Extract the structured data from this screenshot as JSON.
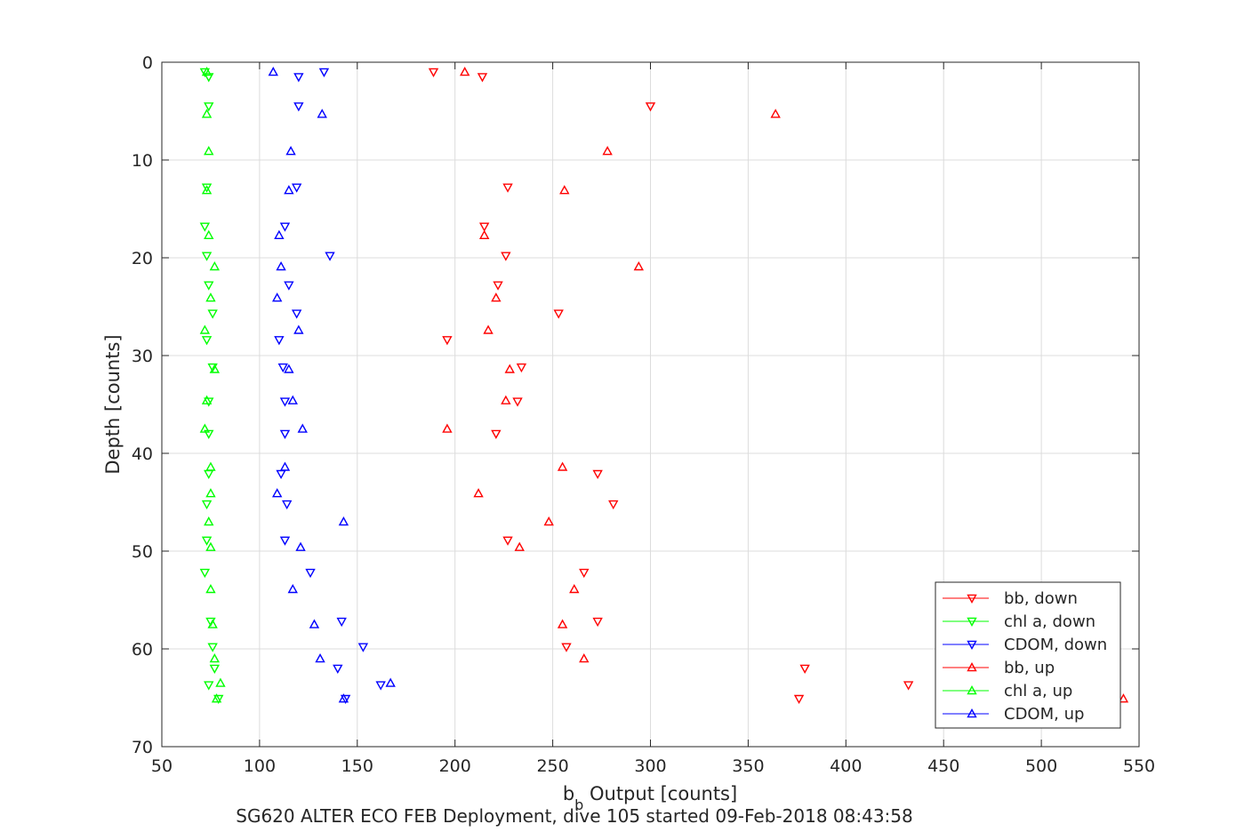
{
  "chart_data": {
    "type": "scatter",
    "xlabel_main": "b",
    "xlabel_sub": "b",
    "xlabel_rest": " Output [counts]",
    "ylabel": "Depth [counts]",
    "caption": "SG620 ALTER ECO FEB Deployment, dive 105 started 09-Feb-2018 08:43:58",
    "xlim": [
      50,
      550
    ],
    "ylim": [
      0,
      70
    ],
    "y_reversed": true,
    "grid": true,
    "legend_position": "bottom-right",
    "x_ticks": [
      "50",
      "100",
      "150",
      "200",
      "250",
      "300",
      "350",
      "400",
      "450",
      "500",
      "550"
    ],
    "y_ticks": [
      "0",
      "10",
      "20",
      "30",
      "40",
      "50",
      "60",
      "70"
    ],
    "series": [
      {
        "name": "bb, down",
        "color": "#ff0000",
        "marker": "triangle-down",
        "points": [
          [
            189,
            1.0
          ],
          [
            214,
            1.5
          ],
          [
            300,
            4.5
          ],
          [
            227,
            12.8
          ],
          [
            215,
            16.8
          ],
          [
            226,
            19.8
          ],
          [
            222,
            22.8
          ],
          [
            253,
            25.7
          ],
          [
            196,
            28.4
          ],
          [
            234,
            31.2
          ],
          [
            232,
            34.7
          ],
          [
            221,
            38.0
          ],
          [
            273,
            42.1
          ],
          [
            281,
            45.2
          ],
          [
            227,
            48.9
          ],
          [
            266,
            52.2
          ],
          [
            273,
            57.2
          ],
          [
            257,
            59.8
          ],
          [
            379,
            62.0
          ],
          [
            432,
            63.7
          ],
          [
            376,
            65.1
          ]
        ]
      },
      {
        "name": "chl a, down",
        "color": "#00ff00",
        "marker": "triangle-down",
        "points": [
          [
            72,
            1.0
          ],
          [
            74,
            1.5
          ],
          [
            74,
            4.5
          ],
          [
            73,
            12.8
          ],
          [
            72,
            16.8
          ],
          [
            73,
            19.8
          ],
          [
            74,
            22.8
          ],
          [
            76,
            25.7
          ],
          [
            73,
            28.4
          ],
          [
            76,
            31.2
          ],
          [
            74,
            34.7
          ],
          [
            74,
            38.0
          ],
          [
            74,
            42.1
          ],
          [
            73,
            45.2
          ],
          [
            73,
            48.9
          ],
          [
            72,
            52.2
          ],
          [
            75,
            57.2
          ],
          [
            76,
            59.8
          ],
          [
            77,
            62.0
          ],
          [
            74,
            63.7
          ],
          [
            79,
            65.1
          ]
        ]
      },
      {
        "name": "CDOM, down",
        "color": "#0000ff",
        "marker": "triangle-down",
        "points": [
          [
            133,
            1.0
          ],
          [
            120,
            1.5
          ],
          [
            120,
            4.5
          ],
          [
            119,
            12.8
          ],
          [
            113,
            16.8
          ],
          [
            136,
            19.8
          ],
          [
            115,
            22.8
          ],
          [
            119,
            25.7
          ],
          [
            110,
            28.4
          ],
          [
            112,
            31.2
          ],
          [
            113,
            34.7
          ],
          [
            113,
            38.0
          ],
          [
            111,
            42.1
          ],
          [
            114,
            45.2
          ],
          [
            113,
            48.9
          ],
          [
            126,
            52.2
          ],
          [
            142,
            57.2
          ],
          [
            153,
            59.8
          ],
          [
            140,
            62.0
          ],
          [
            162,
            63.7
          ],
          [
            144,
            65.1
          ]
        ]
      },
      {
        "name": "bb, up",
        "color": "#ff0000",
        "marker": "triangle-up",
        "points": [
          [
            205,
            1.0
          ],
          [
            364,
            5.3
          ],
          [
            278,
            9.1
          ],
          [
            256,
            13.1
          ],
          [
            215,
            17.7
          ],
          [
            294,
            20.9
          ],
          [
            221,
            24.1
          ],
          [
            217,
            27.4
          ],
          [
            228,
            31.4
          ],
          [
            226,
            34.6
          ],
          [
            196,
            37.5
          ],
          [
            255,
            41.4
          ],
          [
            212,
            44.1
          ],
          [
            248,
            47.0
          ],
          [
            233,
            49.6
          ],
          [
            261,
            53.9
          ],
          [
            255,
            57.5
          ],
          [
            266,
            61.0
          ],
          [
            542,
            65.1
          ]
        ]
      },
      {
        "name": "chl a, up",
        "color": "#00ff00",
        "marker": "triangle-up",
        "points": [
          [
            73,
            1.0
          ],
          [
            73,
            5.3
          ],
          [
            74,
            9.1
          ],
          [
            73,
            13.1
          ],
          [
            74,
            17.7
          ],
          [
            77,
            20.9
          ],
          [
            75,
            24.1
          ],
          [
            72,
            27.4
          ],
          [
            77,
            31.4
          ],
          [
            73,
            34.6
          ],
          [
            72,
            37.5
          ],
          [
            75,
            41.4
          ],
          [
            75,
            44.1
          ],
          [
            74,
            47.0
          ],
          [
            75,
            49.6
          ],
          [
            75,
            53.9
          ],
          [
            76,
            57.5
          ],
          [
            77,
            61.0
          ],
          [
            80,
            63.5
          ],
          [
            78,
            65.1
          ]
        ]
      },
      {
        "name": "CDOM, up",
        "color": "#0000ff",
        "marker": "triangle-up",
        "points": [
          [
            107,
            1.0
          ],
          [
            132,
            5.3
          ],
          [
            116,
            9.1
          ],
          [
            115,
            13.1
          ],
          [
            110,
            17.7
          ],
          [
            111,
            20.9
          ],
          [
            109,
            24.1
          ],
          [
            120,
            27.4
          ],
          [
            115,
            31.4
          ],
          [
            117,
            34.6
          ],
          [
            122,
            37.5
          ],
          [
            113,
            41.4
          ],
          [
            109,
            44.1
          ],
          [
            143,
            47.0
          ],
          [
            121,
            49.6
          ],
          [
            117,
            53.9
          ],
          [
            128,
            57.5
          ],
          [
            131,
            61.0
          ],
          [
            167,
            63.5
          ],
          [
            143,
            65.1
          ]
        ]
      }
    ]
  }
}
